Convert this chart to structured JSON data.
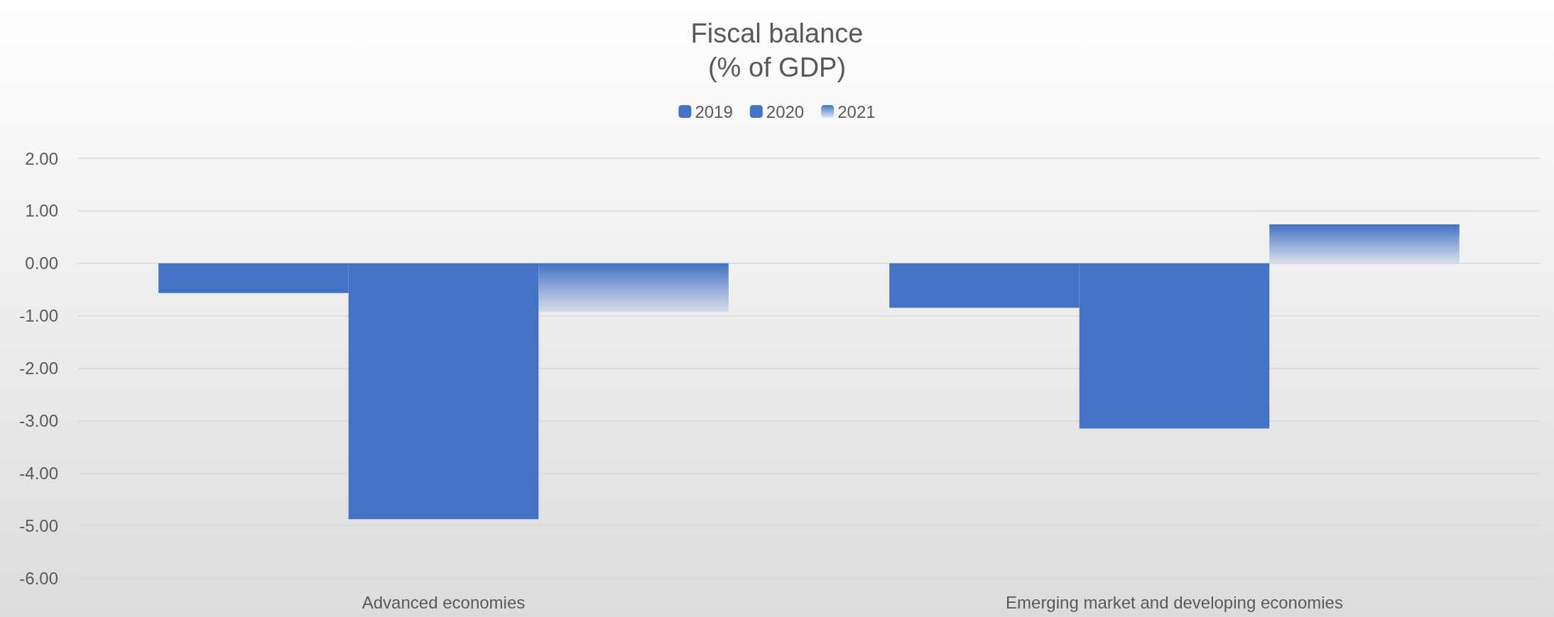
{
  "chart_data": {
    "type": "bar",
    "title": "Fiscal balance\n(% of GDP)",
    "categories": [
      "Advanced economies",
      "Emerging market and developing economies"
    ],
    "series": [
      {
        "name": "2019",
        "color": "#4472c4",
        "values": [
          -0.57,
          -0.85
        ]
      },
      {
        "name": "2020",
        "color": "#4472c4",
        "values": [
          -4.88,
          -3.15
        ]
      },
      {
        "name": "2021",
        "color": "#4472c4",
        "values": [
          -0.93,
          0.74
        ]
      }
    ],
    "ylim": [
      -6,
      2
    ],
    "yticks": [
      {
        "value": -6,
        "label": "-6.00"
      },
      {
        "value": -5,
        "label": "-5.00"
      },
      {
        "value": -4,
        "label": "-4.00"
      },
      {
        "value": -3,
        "label": "-3.00"
      },
      {
        "value": -2,
        "label": "-2.00"
      },
      {
        "value": -1,
        "label": "-1.00"
      },
      {
        "value": 0,
        "label": "0.00"
      },
      {
        "value": 1,
        "label": "1.00"
      },
      {
        "value": 2,
        "label": "2.00"
      }
    ],
    "grid": "y",
    "legend": "top"
  }
}
